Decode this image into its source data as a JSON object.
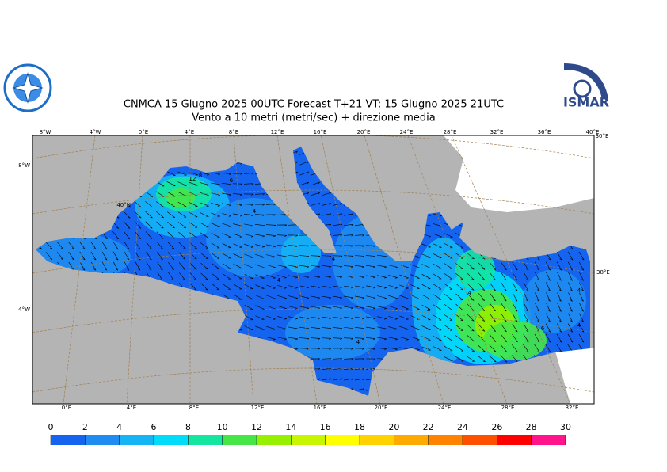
{
  "header": {
    "title": "CNMCA 15   Giugno  2025 00UTC Forecast T+21 VT: 15   Giugno  2025 21UTC",
    "subtitle": "Vento a 10 metri (metri/sec) + direzione media",
    "logo_text": "ISMAR"
  },
  "map": {
    "top_labels": [
      "8°W",
      "4°W",
      "0°E",
      "4°E",
      "8°E",
      "12°E",
      "16°E",
      "20°E",
      "24°E",
      "28°E",
      "32°E",
      "36°E",
      "40°E",
      "30°E"
    ],
    "bottom_labels": [
      "0°E",
      "4°E",
      "8°E",
      "12°E",
      "16°E",
      "20°E",
      "24°E",
      "28°E",
      "32°E"
    ],
    "left_labels": [
      "8°W",
      "40°N",
      "4°W"
    ],
    "right_labels": [
      "38°E"
    ],
    "contour_labels": [
      "12",
      "8",
      "6",
      "4",
      "4",
      "4",
      "4",
      "4",
      "6",
      "4",
      "4",
      "4"
    ]
  },
  "colorbar": {
    "ticks": [
      0,
      2,
      4,
      6,
      8,
      10,
      12,
      14,
      16,
      18,
      20,
      22,
      24,
      26,
      28,
      30
    ],
    "colors": [
      "#1464f0",
      "#1e8cf0",
      "#14b4f5",
      "#00dcfa",
      "#14e6a0",
      "#46e646",
      "#96f000",
      "#c8f500",
      "#ffff00",
      "#ffd200",
      "#ffaa00",
      "#ff8200",
      "#ff5000",
      "#ff0000",
      "#ff148c"
    ]
  }
}
